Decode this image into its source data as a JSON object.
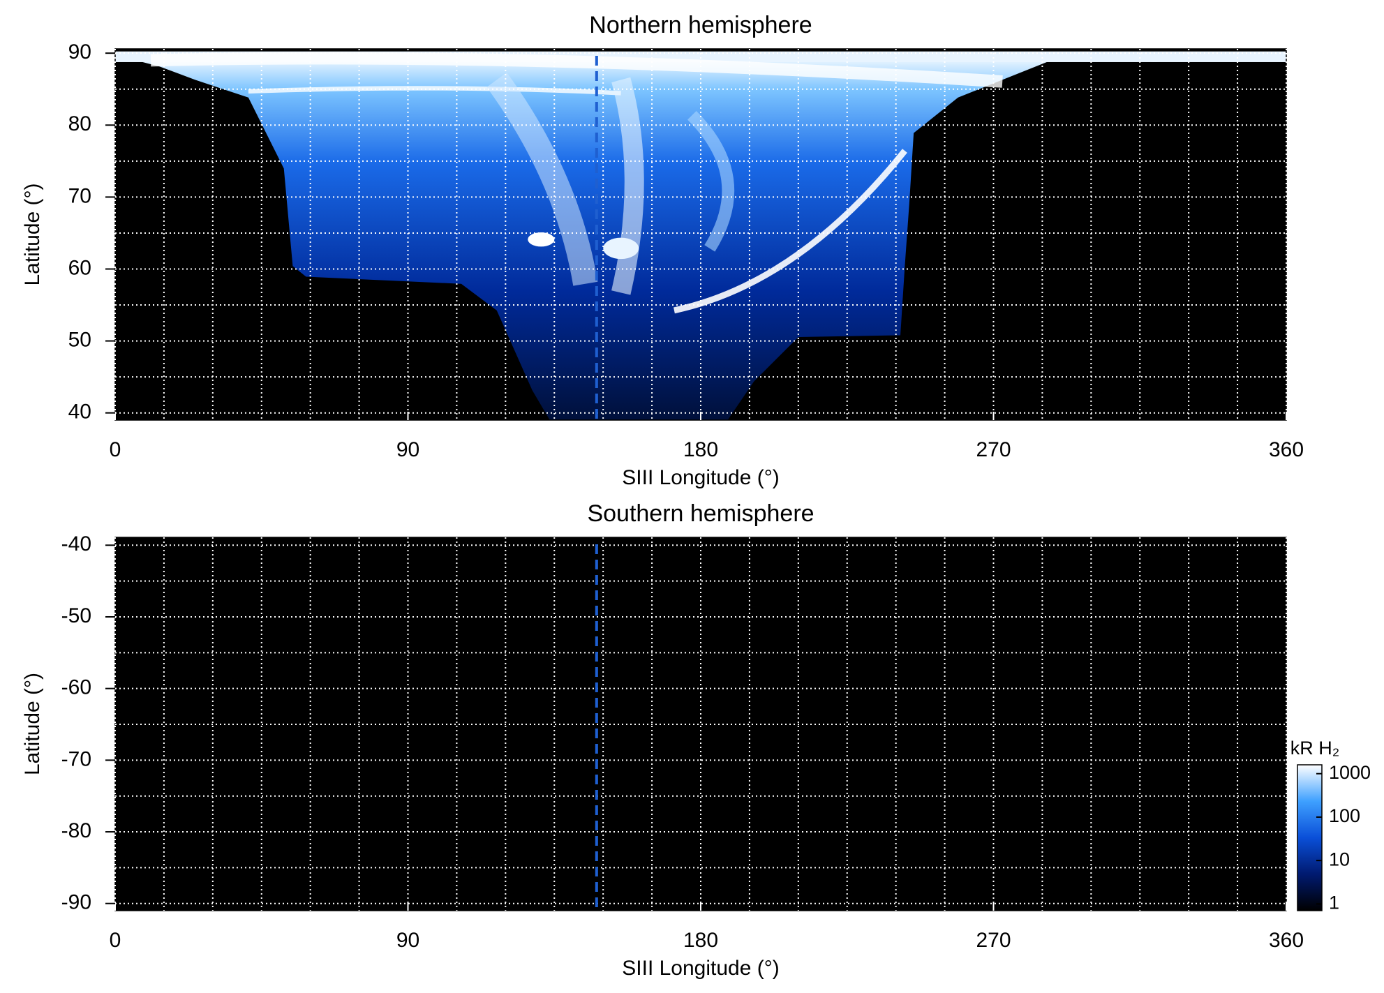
{
  "chart_data": [
    {
      "type": "heatmap",
      "title": "Northern hemisphere",
      "xlabel": "SIII Longitude (°)",
      "ylabel": "Latitude (°)",
      "xlim": [
        0,
        360
      ],
      "xticks": [
        0,
        90,
        180,
        270,
        360
      ],
      "x_gridlines": [
        0,
        15,
        30,
        45,
        60,
        75,
        90,
        105,
        120,
        135,
        150,
        165,
        180,
        195,
        210,
        225,
        240,
        255,
        270,
        285,
        300,
        315,
        330,
        345,
        360
      ],
      "ylim": [
        39,
        90.6
      ],
      "yticks": [
        40,
        50,
        60,
        70,
        80,
        90
      ],
      "y_gridlines": [
        40,
        45,
        50,
        55,
        60,
        65,
        70,
        75,
        80,
        85,
        90
      ],
      "grid": true,
      "reference_line": {
        "x": 148,
        "color": "#1f5fd0"
      }
    },
    {
      "type": "heatmap",
      "title": "Southern hemisphere",
      "xlabel": "SIII Longitude (°)",
      "ylabel": "Latitude (°)",
      "xlim": [
        0,
        360
      ],
      "xticks": [
        0,
        90,
        180,
        270,
        360
      ],
      "x_gridlines": [
        0,
        15,
        30,
        45,
        60,
        75,
        90,
        105,
        120,
        135,
        150,
        165,
        180,
        195,
        210,
        225,
        240,
        255,
        270,
        285,
        300,
        315,
        330,
        345,
        360
      ],
      "ylim": [
        -91,
        -38.9
      ],
      "yticks": [
        -90,
        -80,
        -70,
        -60,
        -50,
        -40
      ],
      "y_gridlines": [
        -90,
        -85,
        -80,
        -75,
        -70,
        -65,
        -60,
        -55,
        -50,
        -45,
        -40
      ],
      "grid": true,
      "reference_line": {
        "x": 148,
        "color": "#1f5fd0"
      },
      "colorbar": {
        "label": "kR H₂",
        "scale": "log",
        "lim": [
          0.7,
          1600
        ],
        "ticks": [
          1,
          10,
          100,
          1000
        ],
        "colors": [
          "#000000",
          "#001a70",
          "#0a4fd8",
          "#3ea0ff",
          "#ffffff"
        ]
      }
    }
  ]
}
